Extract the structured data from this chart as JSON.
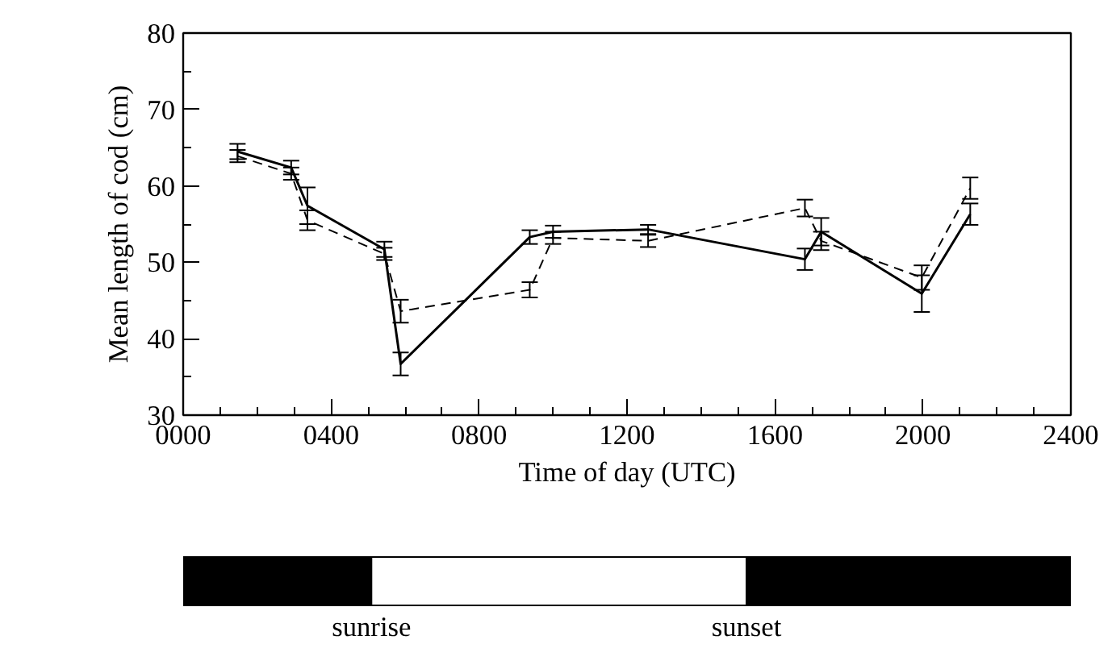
{
  "chart_data": [
    {
      "type": "line",
      "xlabel": "Time of day (UTC)",
      "ylabel": "Mean length of cod (cm)",
      "xlim": [
        0,
        2400
      ],
      "ylim": [
        30,
        80
      ],
      "xticks": [
        {
          "value": 0,
          "label": "0000"
        },
        {
          "value": 400,
          "label": "0400"
        },
        {
          "value": 800,
          "label": "0800"
        },
        1200,
        1600,
        2000,
        2400
      ],
      "yticks": [
        30,
        40,
        50,
        60,
        70,
        80
      ],
      "x": [
        147,
        292,
        336,
        544,
        588,
        937,
        1000,
        1257,
        1681,
        1725,
        1997,
        2128
      ],
      "series": [
        {
          "color": "#000000",
          "line_style": "solid",
          "values": [
            64.5,
            62.4,
            57.4,
            51.7,
            36.7,
            53.3,
            54.0,
            54.3,
            50.4,
            54.0,
            45.9,
            56.3
          ],
          "errors": [
            1.0,
            0.9,
            2.4,
            1.0,
            1.5,
            0.9,
            0.8,
            0.6,
            1.4,
            1.8,
            2.4,
            1.4
          ]
        },
        {
          "color": "#000000",
          "line_style": "dashed",
          "values": [
            63.9,
            61.6,
            55.5,
            51.1,
            43.6,
            46.4,
            53.2,
            52.8,
            57.1,
            52.8,
            48.0,
            59.7
          ],
          "errors": [
            0.8,
            0.8,
            1.3,
            0.8,
            1.5,
            1.0,
            0.8,
            0.8,
            1.1,
            1.2,
            1.6,
            1.4
          ]
        }
      ],
      "grid": false
    },
    {
      "type": "bar",
      "orientation": "horizontal",
      "stacked": true,
      "categories": [
        null
      ],
      "xlim": [
        0,
        2400
      ],
      "tick_labels": false,
      "series": [
        {
          "color": "#000000",
          "values": [
            509
          ]
        },
        {
          "color": "#ffffff",
          "values": [
            1014
          ]
        },
        {
          "color": "#000000",
          "values": [
            877
          ]
        }
      ],
      "annotations": [
        "sunrise",
        "sunset"
      ]
    }
  ]
}
